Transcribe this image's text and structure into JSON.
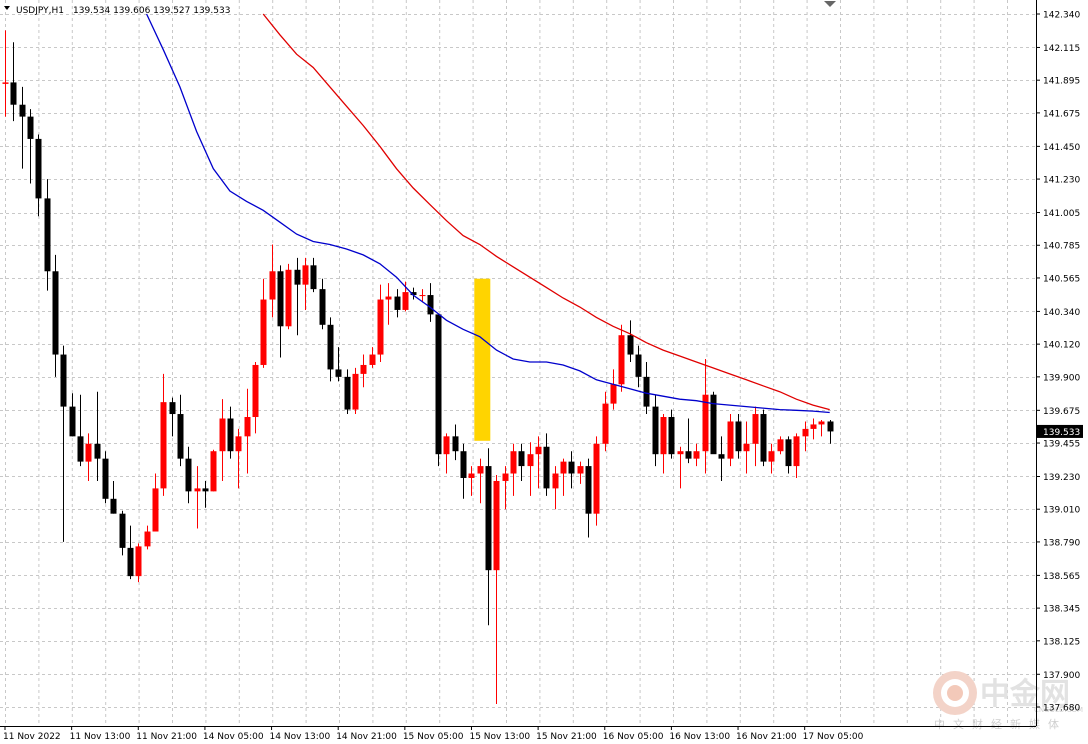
{
  "header": {
    "symbol": "USDJPY,H1",
    "ohlc": "139.534 139.606 139.527 139.533"
  },
  "price_axis": {
    "ticks": [
      "142.340",
      "142.115",
      "141.895",
      "141.675",
      "141.450",
      "141.230",
      "141.005",
      "140.785",
      "140.565",
      "140.340",
      "140.120",
      "139.900",
      "139.675",
      "139.455",
      "139.230",
      "139.010",
      "138.790",
      "138.565",
      "138.345",
      "138.125",
      "137.900",
      "137.680"
    ],
    "current_price": "139.533"
  },
  "time_axis": {
    "ticks": [
      "11 Nov 2022",
      "11 Nov 13:00",
      "11 Nov 21:00",
      "14 Nov 05:00",
      "14 Nov 13:00",
      "14 Nov 21:00",
      "15 Nov 05:00",
      "15 Nov 13:00",
      "15 Nov 21:00",
      "16 Nov 05:00",
      "16 Nov 13:00",
      "16 Nov 21:00",
      "17 Nov 05:00"
    ]
  },
  "watermark": {
    "name": "中金网",
    "site": "CNGOLD.COM",
    "tagline": "中文财经新媒体"
  },
  "colors": {
    "bull": "#ff0000",
    "bear": "#000000",
    "ma_fast": "#0000cc",
    "ma_slow": "#e00000",
    "highlight": "#ffd400",
    "grid": "#c8c8c8",
    "price_label_bg": "#000000"
  },
  "chart_data": {
    "type": "candlestick",
    "symbol": "USDJPY",
    "timeframe": "H1",
    "ylim": [
      137.68,
      142.34
    ],
    "candles": [
      {
        "o": 141.87,
        "h": 142.23,
        "l": 141.65,
        "c": 141.88
      },
      {
        "o": 141.88,
        "h": 142.15,
        "l": 141.62,
        "c": 141.73
      },
      {
        "o": 141.73,
        "h": 141.85,
        "l": 141.3,
        "c": 141.65
      },
      {
        "o": 141.65,
        "h": 141.7,
        "l": 141.2,
        "c": 141.5
      },
      {
        "o": 141.5,
        "h": 141.53,
        "l": 140.98,
        "c": 141.1
      },
      {
        "o": 141.1,
        "h": 141.23,
        "l": 140.48,
        "c": 140.61
      },
      {
        "o": 140.61,
        "h": 140.72,
        "l": 139.9,
        "c": 140.05
      },
      {
        "o": 140.05,
        "h": 140.11,
        "l": 138.79,
        "c": 139.7
      },
      {
        "o": 139.7,
        "h": 139.79,
        "l": 139.5,
        "c": 139.5
      },
      {
        "o": 139.5,
        "h": 139.78,
        "l": 139.3,
        "c": 139.33
      },
      {
        "o": 139.33,
        "h": 139.52,
        "l": 139.2,
        "c": 139.45
      },
      {
        "o": 139.45,
        "h": 139.8,
        "l": 139.2,
        "c": 139.35
      },
      {
        "o": 139.35,
        "h": 139.4,
        "l": 139.05,
        "c": 139.08
      },
      {
        "o": 139.08,
        "h": 139.2,
        "l": 138.98,
        "c": 138.98
      },
      {
        "o": 138.98,
        "h": 139.0,
        "l": 138.7,
        "c": 138.75
      },
      {
        "o": 138.75,
        "h": 138.9,
        "l": 138.54,
        "c": 138.56
      },
      {
        "o": 138.56,
        "h": 138.78,
        "l": 138.52,
        "c": 138.76
      },
      {
        "o": 138.76,
        "h": 138.9,
        "l": 138.74,
        "c": 138.86
      },
      {
        "o": 138.86,
        "h": 139.25,
        "l": 138.87,
        "c": 139.15
      },
      {
        "o": 139.15,
        "h": 139.92,
        "l": 139.1,
        "c": 139.73
      },
      {
        "o": 139.73,
        "h": 139.76,
        "l": 139.5,
        "c": 139.65
      },
      {
        "o": 139.65,
        "h": 139.78,
        "l": 139.3,
        "c": 139.35
      },
      {
        "o": 139.35,
        "h": 139.43,
        "l": 139.05,
        "c": 139.13
      },
      {
        "o": 139.13,
        "h": 139.3,
        "l": 138.88,
        "c": 139.15
      },
      {
        "o": 139.15,
        "h": 139.2,
        "l": 139.02,
        "c": 139.13
      },
      {
        "o": 139.13,
        "h": 139.41,
        "l": 139.13,
        "c": 139.4
      },
      {
        "o": 139.4,
        "h": 139.75,
        "l": 139.2,
        "c": 139.62
      },
      {
        "o": 139.62,
        "h": 139.7,
        "l": 139.35,
        "c": 139.4
      },
      {
        "o": 139.4,
        "h": 139.55,
        "l": 139.15,
        "c": 139.5
      },
      {
        "o": 139.5,
        "h": 139.82,
        "l": 139.25,
        "c": 139.63
      },
      {
        "o": 139.63,
        "h": 140.0,
        "l": 139.52,
        "c": 139.98
      },
      {
        "o": 139.98,
        "h": 140.56,
        "l": 139.96,
        "c": 140.42
      },
      {
        "o": 140.42,
        "h": 140.79,
        "l": 140.3,
        "c": 140.61
      },
      {
        "o": 140.61,
        "h": 140.65,
        "l": 140.03,
        "c": 140.24
      },
      {
        "o": 140.24,
        "h": 140.66,
        "l": 140.22,
        "c": 140.62
      },
      {
        "o": 140.62,
        "h": 140.7,
        "l": 140.18,
        "c": 140.52
      },
      {
        "o": 140.52,
        "h": 140.7,
        "l": 140.35,
        "c": 140.65
      },
      {
        "o": 140.65,
        "h": 140.7,
        "l": 140.47,
        "c": 140.49
      },
      {
        "o": 140.49,
        "h": 140.56,
        "l": 140.22,
        "c": 140.25
      },
      {
        "o": 140.25,
        "h": 140.3,
        "l": 139.87,
        "c": 139.95
      },
      {
        "o": 139.95,
        "h": 140.1,
        "l": 139.87,
        "c": 139.9
      },
      {
        "o": 139.9,
        "h": 139.95,
        "l": 139.65,
        "c": 139.68
      },
      {
        "o": 139.68,
        "h": 139.96,
        "l": 139.65,
        "c": 139.92
      },
      {
        "o": 139.92,
        "h": 140.05,
        "l": 139.83,
        "c": 139.98
      },
      {
        "o": 139.98,
        "h": 140.1,
        "l": 139.96,
        "c": 140.05
      },
      {
        "o": 140.05,
        "h": 140.52,
        "l": 140.0,
        "c": 140.42
      },
      {
        "o": 140.42,
        "h": 140.53,
        "l": 140.25,
        "c": 140.44
      },
      {
        "o": 140.44,
        "h": 140.49,
        "l": 140.3,
        "c": 140.35
      },
      {
        "o": 140.35,
        "h": 140.54,
        "l": 140.34,
        "c": 140.47
      },
      {
        "o": 140.47,
        "h": 140.5,
        "l": 140.42,
        "c": 140.45
      },
      {
        "o": 140.45,
        "h": 140.49,
        "l": 140.4,
        "c": 140.45
      },
      {
        "o": 140.45,
        "h": 140.53,
        "l": 140.27,
        "c": 140.32
      },
      {
        "o": 140.32,
        "h": 140.32,
        "l": 139.3,
        "c": 139.38
      },
      {
        "o": 139.38,
        "h": 139.52,
        "l": 139.25,
        "c": 139.5
      },
      {
        "o": 139.5,
        "h": 139.58,
        "l": 139.34,
        "c": 139.4
      },
      {
        "o": 139.4,
        "h": 139.45,
        "l": 139.08,
        "c": 139.22
      },
      {
        "o": 139.22,
        "h": 139.3,
        "l": 139.1,
        "c": 139.25
      },
      {
        "o": 139.25,
        "h": 139.35,
        "l": 139.05,
        "c": 139.3
      },
      {
        "o": 139.3,
        "h": 139.42,
        "l": 138.23,
        "c": 138.6
      },
      {
        "o": 138.6,
        "h": 139.24,
        "l": 137.7,
        "c": 139.2
      },
      {
        "o": 139.2,
        "h": 139.3,
        "l": 139.01,
        "c": 139.25
      },
      {
        "o": 139.25,
        "h": 139.45,
        "l": 139.1,
        "c": 139.4
      },
      {
        "o": 139.4,
        "h": 139.45,
        "l": 139.2,
        "c": 139.3
      },
      {
        "o": 139.3,
        "h": 139.46,
        "l": 139.1,
        "c": 139.38
      },
      {
        "o": 139.38,
        "h": 139.5,
        "l": 139.15,
        "c": 139.43
      },
      {
        "o": 139.43,
        "h": 139.52,
        "l": 139.1,
        "c": 139.15
      },
      {
        "o": 139.15,
        "h": 139.3,
        "l": 139.01,
        "c": 139.25
      },
      {
        "o": 139.25,
        "h": 139.35,
        "l": 139.1,
        "c": 139.33
      },
      {
        "o": 139.33,
        "h": 139.4,
        "l": 139.15,
        "c": 139.25
      },
      {
        "o": 139.25,
        "h": 139.33,
        "l": 139.18,
        "c": 139.3
      },
      {
        "o": 139.3,
        "h": 139.35,
        "l": 138.82,
        "c": 138.98
      },
      {
        "o": 138.98,
        "h": 139.5,
        "l": 138.9,
        "c": 139.45
      },
      {
        "o": 139.45,
        "h": 139.8,
        "l": 139.4,
        "c": 139.72
      },
      {
        "o": 139.72,
        "h": 139.95,
        "l": 139.68,
        "c": 139.85
      },
      {
        "o": 139.85,
        "h": 140.25,
        "l": 139.8,
        "c": 140.18
      },
      {
        "o": 140.18,
        "h": 140.28,
        "l": 140.0,
        "c": 140.05
      },
      {
        "o": 140.05,
        "h": 140.11,
        "l": 139.83,
        "c": 139.9
      },
      {
        "o": 139.9,
        "h": 140.0,
        "l": 139.65,
        "c": 139.7
      },
      {
        "o": 139.7,
        "h": 139.78,
        "l": 139.3,
        "c": 139.38
      },
      {
        "o": 139.38,
        "h": 139.65,
        "l": 139.25,
        "c": 139.63
      },
      {
        "o": 139.63,
        "h": 139.68,
        "l": 139.35,
        "c": 139.38
      },
      {
        "o": 139.38,
        "h": 139.43,
        "l": 139.15,
        "c": 139.4
      },
      {
        "o": 139.4,
        "h": 139.62,
        "l": 139.32,
        "c": 139.35
      },
      {
        "o": 139.35,
        "h": 139.45,
        "l": 139.3,
        "c": 139.4
      },
      {
        "o": 139.4,
        "h": 140.02,
        "l": 139.25,
        "c": 139.78
      },
      {
        "o": 139.78,
        "h": 139.8,
        "l": 139.4,
        "c": 139.38
      },
      {
        "o": 139.38,
        "h": 139.5,
        "l": 139.2,
        "c": 139.35
      },
      {
        "o": 139.35,
        "h": 139.65,
        "l": 139.3,
        "c": 139.6
      },
      {
        "o": 139.6,
        "h": 139.65,
        "l": 139.35,
        "c": 139.4
      },
      {
        "o": 139.4,
        "h": 139.6,
        "l": 139.25,
        "c": 139.45
      },
      {
        "o": 139.45,
        "h": 139.7,
        "l": 139.3,
        "c": 139.65
      },
      {
        "o": 139.65,
        "h": 139.68,
        "l": 139.3,
        "c": 139.33
      },
      {
        "o": 139.33,
        "h": 139.45,
        "l": 139.25,
        "c": 139.4
      },
      {
        "o": 139.4,
        "h": 139.5,
        "l": 139.38,
        "c": 139.48
      },
      {
        "o": 139.48,
        "h": 139.5,
        "l": 139.25,
        "c": 139.3
      },
      {
        "o": 139.3,
        "h": 139.52,
        "l": 139.22,
        "c": 139.5
      },
      {
        "o": 139.5,
        "h": 139.6,
        "l": 139.4,
        "c": 139.55
      },
      {
        "o": 139.55,
        "h": 139.62,
        "l": 139.48,
        "c": 139.58
      },
      {
        "o": 139.58,
        "h": 139.61,
        "l": 139.5,
        "c": 139.6
      },
      {
        "o": 139.6,
        "h": 139.61,
        "l": 139.45,
        "c": 139.533
      }
    ],
    "ma_fast": [
      [
        17,
        142.34
      ],
      [
        19,
        142.1
      ],
      [
        21,
        141.85
      ],
      [
        23,
        141.55
      ],
      [
        25,
        141.3
      ],
      [
        27,
        141.15
      ],
      [
        29,
        141.08
      ],
      [
        31,
        141.02
      ],
      [
        33,
        140.94
      ],
      [
        35,
        140.86
      ],
      [
        37,
        140.81
      ],
      [
        39,
        140.79
      ],
      [
        41,
        140.76
      ],
      [
        43,
        140.72
      ],
      [
        45,
        140.66
      ],
      [
        47,
        140.57
      ],
      [
        49,
        140.45
      ],
      [
        51,
        140.37
      ],
      [
        53,
        140.28
      ],
      [
        55,
        140.22
      ],
      [
        57,
        140.17
      ],
      [
        59,
        140.08
      ],
      [
        61,
        140.02
      ],
      [
        63,
        140.0
      ],
      [
        65,
        140.0
      ],
      [
        67,
        139.98
      ],
      [
        69,
        139.94
      ],
      [
        71,
        139.88
      ],
      [
        73,
        139.85
      ],
      [
        75,
        139.82
      ],
      [
        77,
        139.79
      ],
      [
        79,
        139.77
      ],
      [
        81,
        139.75
      ],
      [
        83,
        139.74
      ],
      [
        85,
        139.72
      ],
      [
        87,
        139.71
      ],
      [
        89,
        139.7
      ],
      [
        91,
        139.69
      ],
      [
        93,
        139.68
      ],
      [
        95,
        139.675
      ],
      [
        97,
        139.67
      ],
      [
        99,
        139.66
      ]
    ],
    "ma_slow": [
      [
        31,
        142.34
      ],
      [
        33,
        142.2
      ],
      [
        35,
        142.07
      ],
      [
        37,
        141.98
      ],
      [
        39,
        141.85
      ],
      [
        41,
        141.72
      ],
      [
        43,
        141.59
      ],
      [
        45,
        141.45
      ],
      [
        47,
        141.3
      ],
      [
        49,
        141.17
      ],
      [
        51,
        141.06
      ],
      [
        53,
        140.95
      ],
      [
        55,
        140.85
      ],
      [
        57,
        140.79
      ],
      [
        59,
        140.71
      ],
      [
        61,
        140.64
      ],
      [
        63,
        140.57
      ],
      [
        65,
        140.5
      ],
      [
        67,
        140.43
      ],
      [
        69,
        140.37
      ],
      [
        71,
        140.3
      ],
      [
        73,
        140.24
      ],
      [
        75,
        140.19
      ],
      [
        77,
        140.13
      ],
      [
        79,
        140.08
      ],
      [
        81,
        140.04
      ],
      [
        83,
        140.0
      ],
      [
        85,
        139.96
      ],
      [
        87,
        139.92
      ],
      [
        89,
        139.88
      ],
      [
        91,
        139.84
      ],
      [
        93,
        139.8
      ],
      [
        95,
        139.75
      ],
      [
        97,
        139.71
      ],
      [
        99,
        139.68
      ]
    ],
    "highlight_box": {
      "bar": 57.3,
      "top": 140.56,
      "bottom": 139.47
    },
    "x_ticks_at_bar": [
      0,
      8,
      16,
      24,
      32,
      40,
      48,
      56,
      64,
      72,
      80,
      88,
      96
    ]
  }
}
